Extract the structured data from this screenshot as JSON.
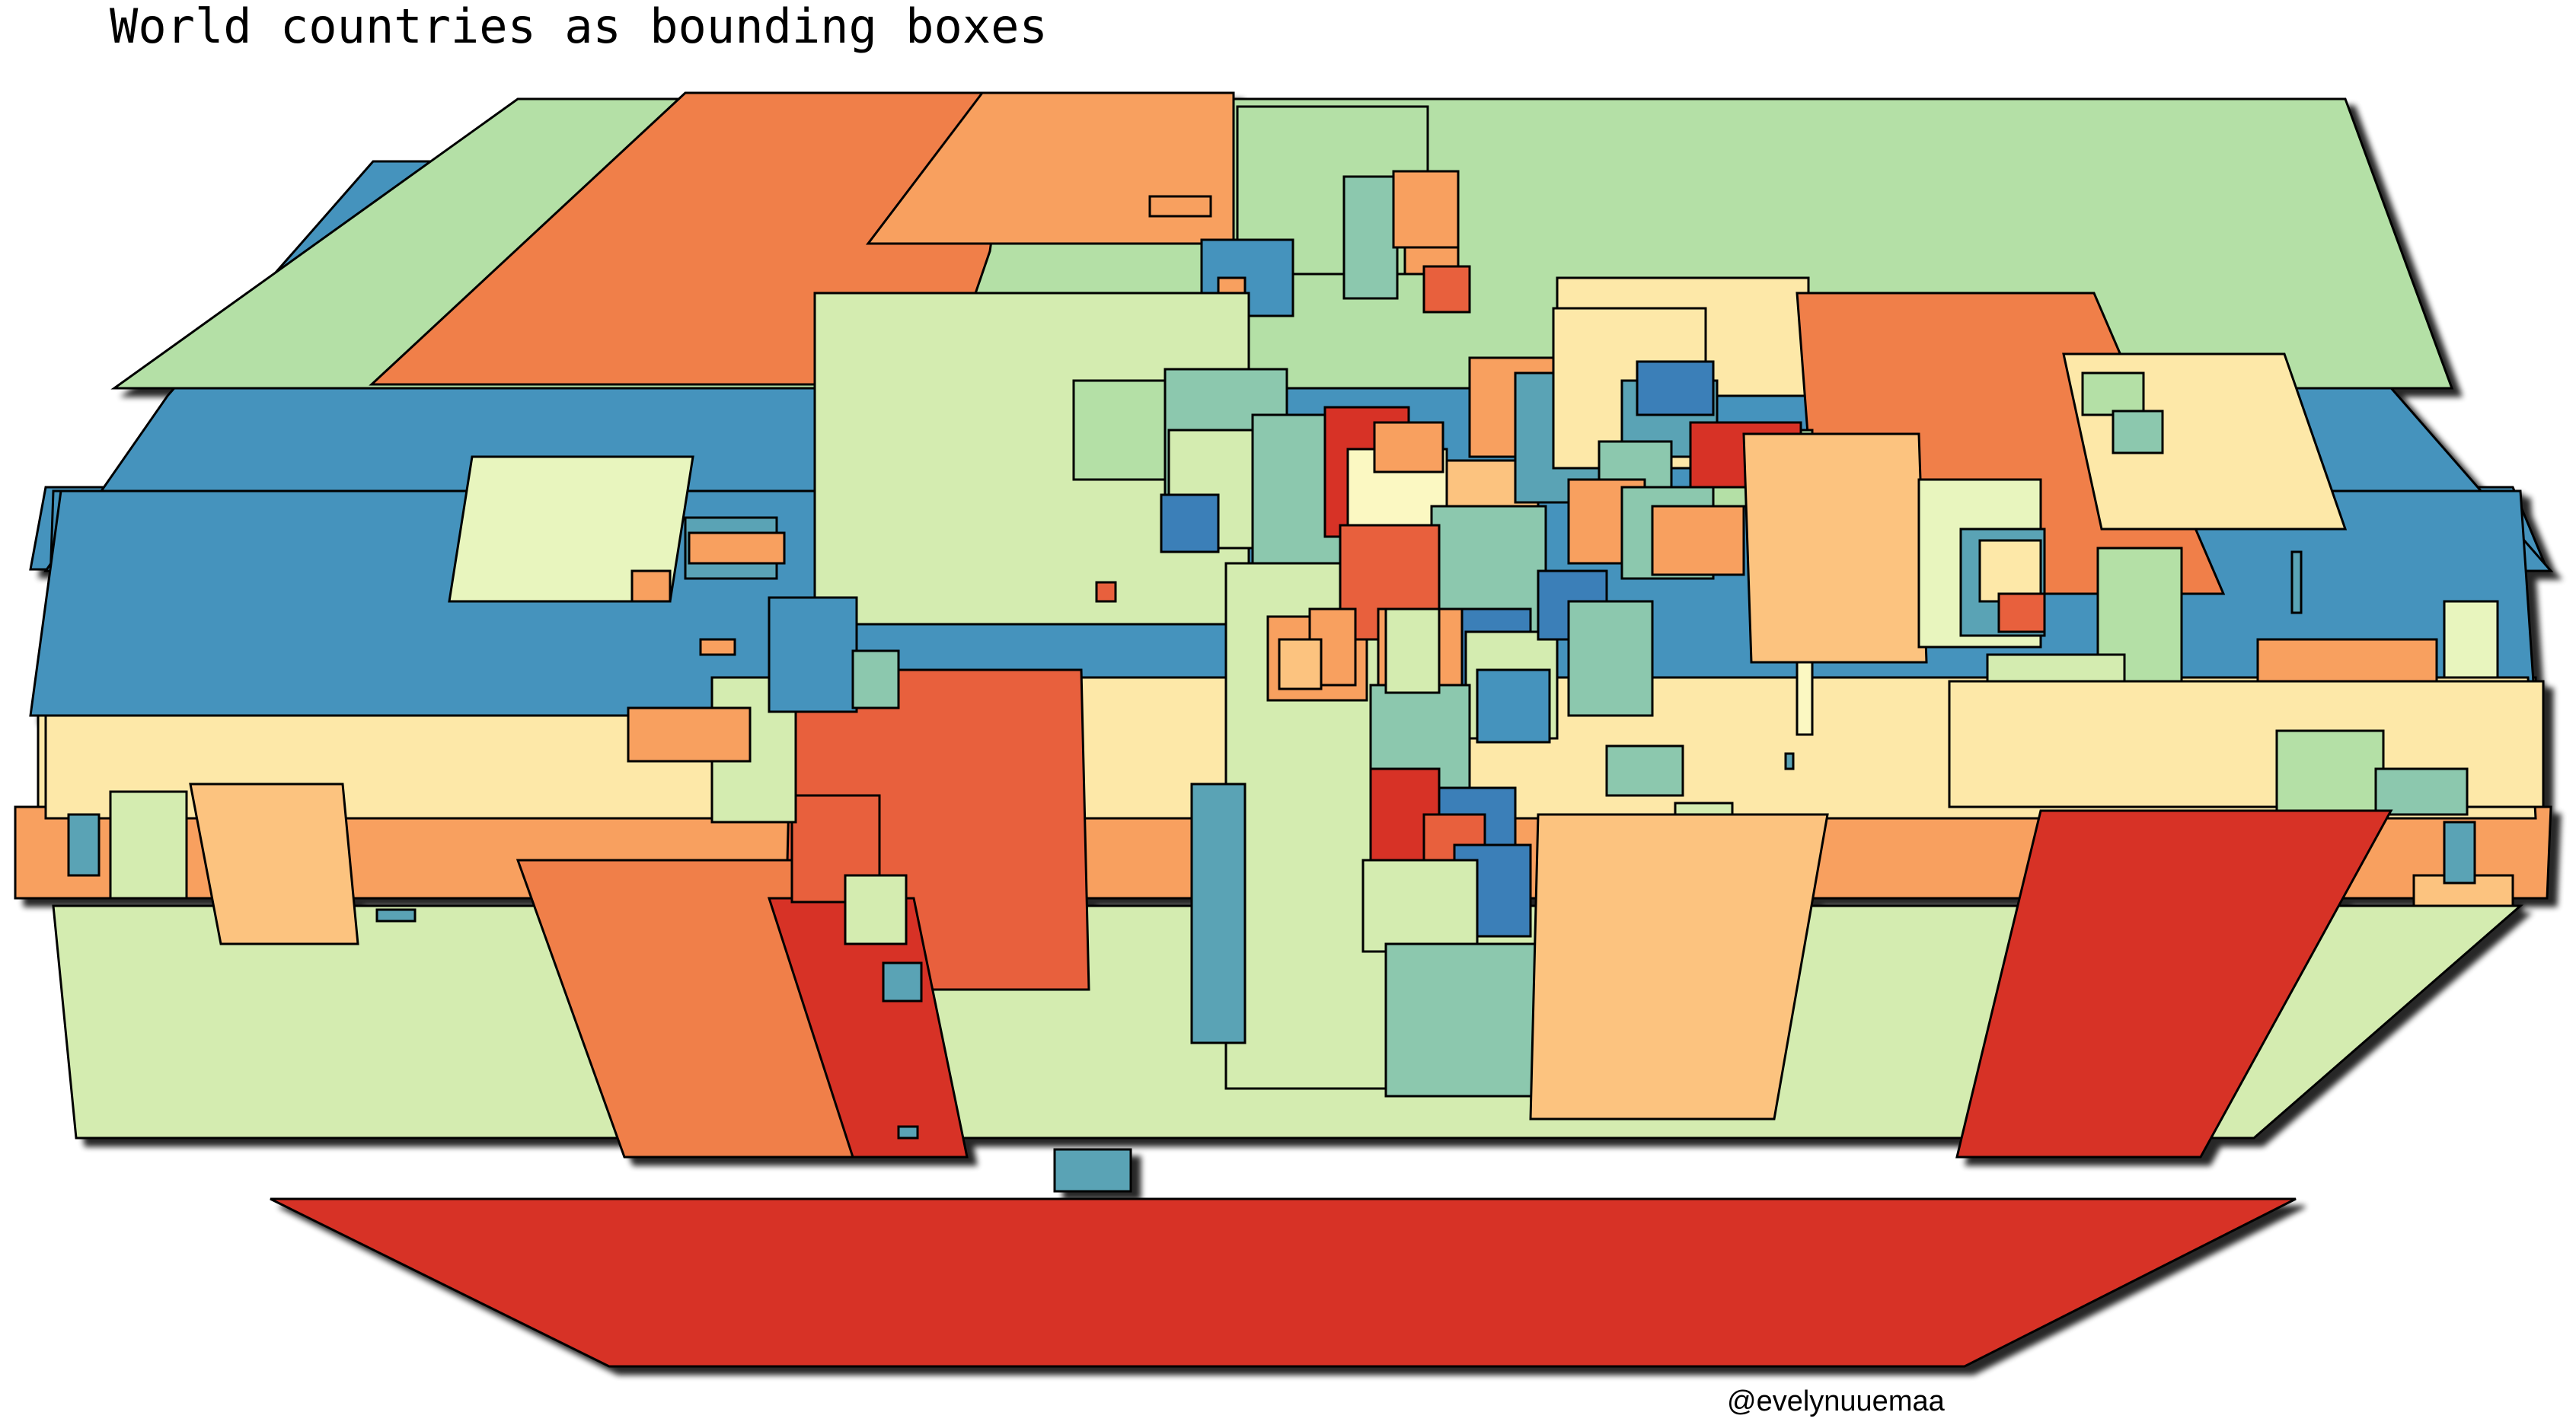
{
  "title": "World countries as bounding boxes",
  "credit": "@evelynuuemaa",
  "colors": {
    "red": "#d73027",
    "red_orange": "#e8603c",
    "orange": "#f07f4a",
    "light_orange": "#f8a05f",
    "peach": "#fcc37f",
    "cream": "#fde8a8",
    "pale_yellow": "#fbf8c2",
    "yellow_green": "#e8f5be",
    "pale_green": "#d4ecb0",
    "light_green": "#b4e0a6",
    "teal_green": "#8cc8ae",
    "teal": "#5aa3b5",
    "blue": "#4593bd",
    "dark_blue": "#3a7fb8",
    "outline": "#000000",
    "shadow": "#1e1e1e"
  },
  "shapes": [
    {
      "name": "antarctica-box",
      "color": "red"
    },
    {
      "name": "russia-box",
      "color": "light_green"
    },
    {
      "name": "greenland-box",
      "color": "light_orange"
    },
    {
      "name": "canada-box",
      "color": "orange"
    },
    {
      "name": "usa-box",
      "color": "blue"
    },
    {
      "name": "china-box",
      "color": "orange"
    },
    {
      "name": "brazil-box",
      "color": "red_orange"
    },
    {
      "name": "australia-box",
      "color": "red"
    },
    {
      "name": "africa-box",
      "color": "pale_green"
    }
  ]
}
